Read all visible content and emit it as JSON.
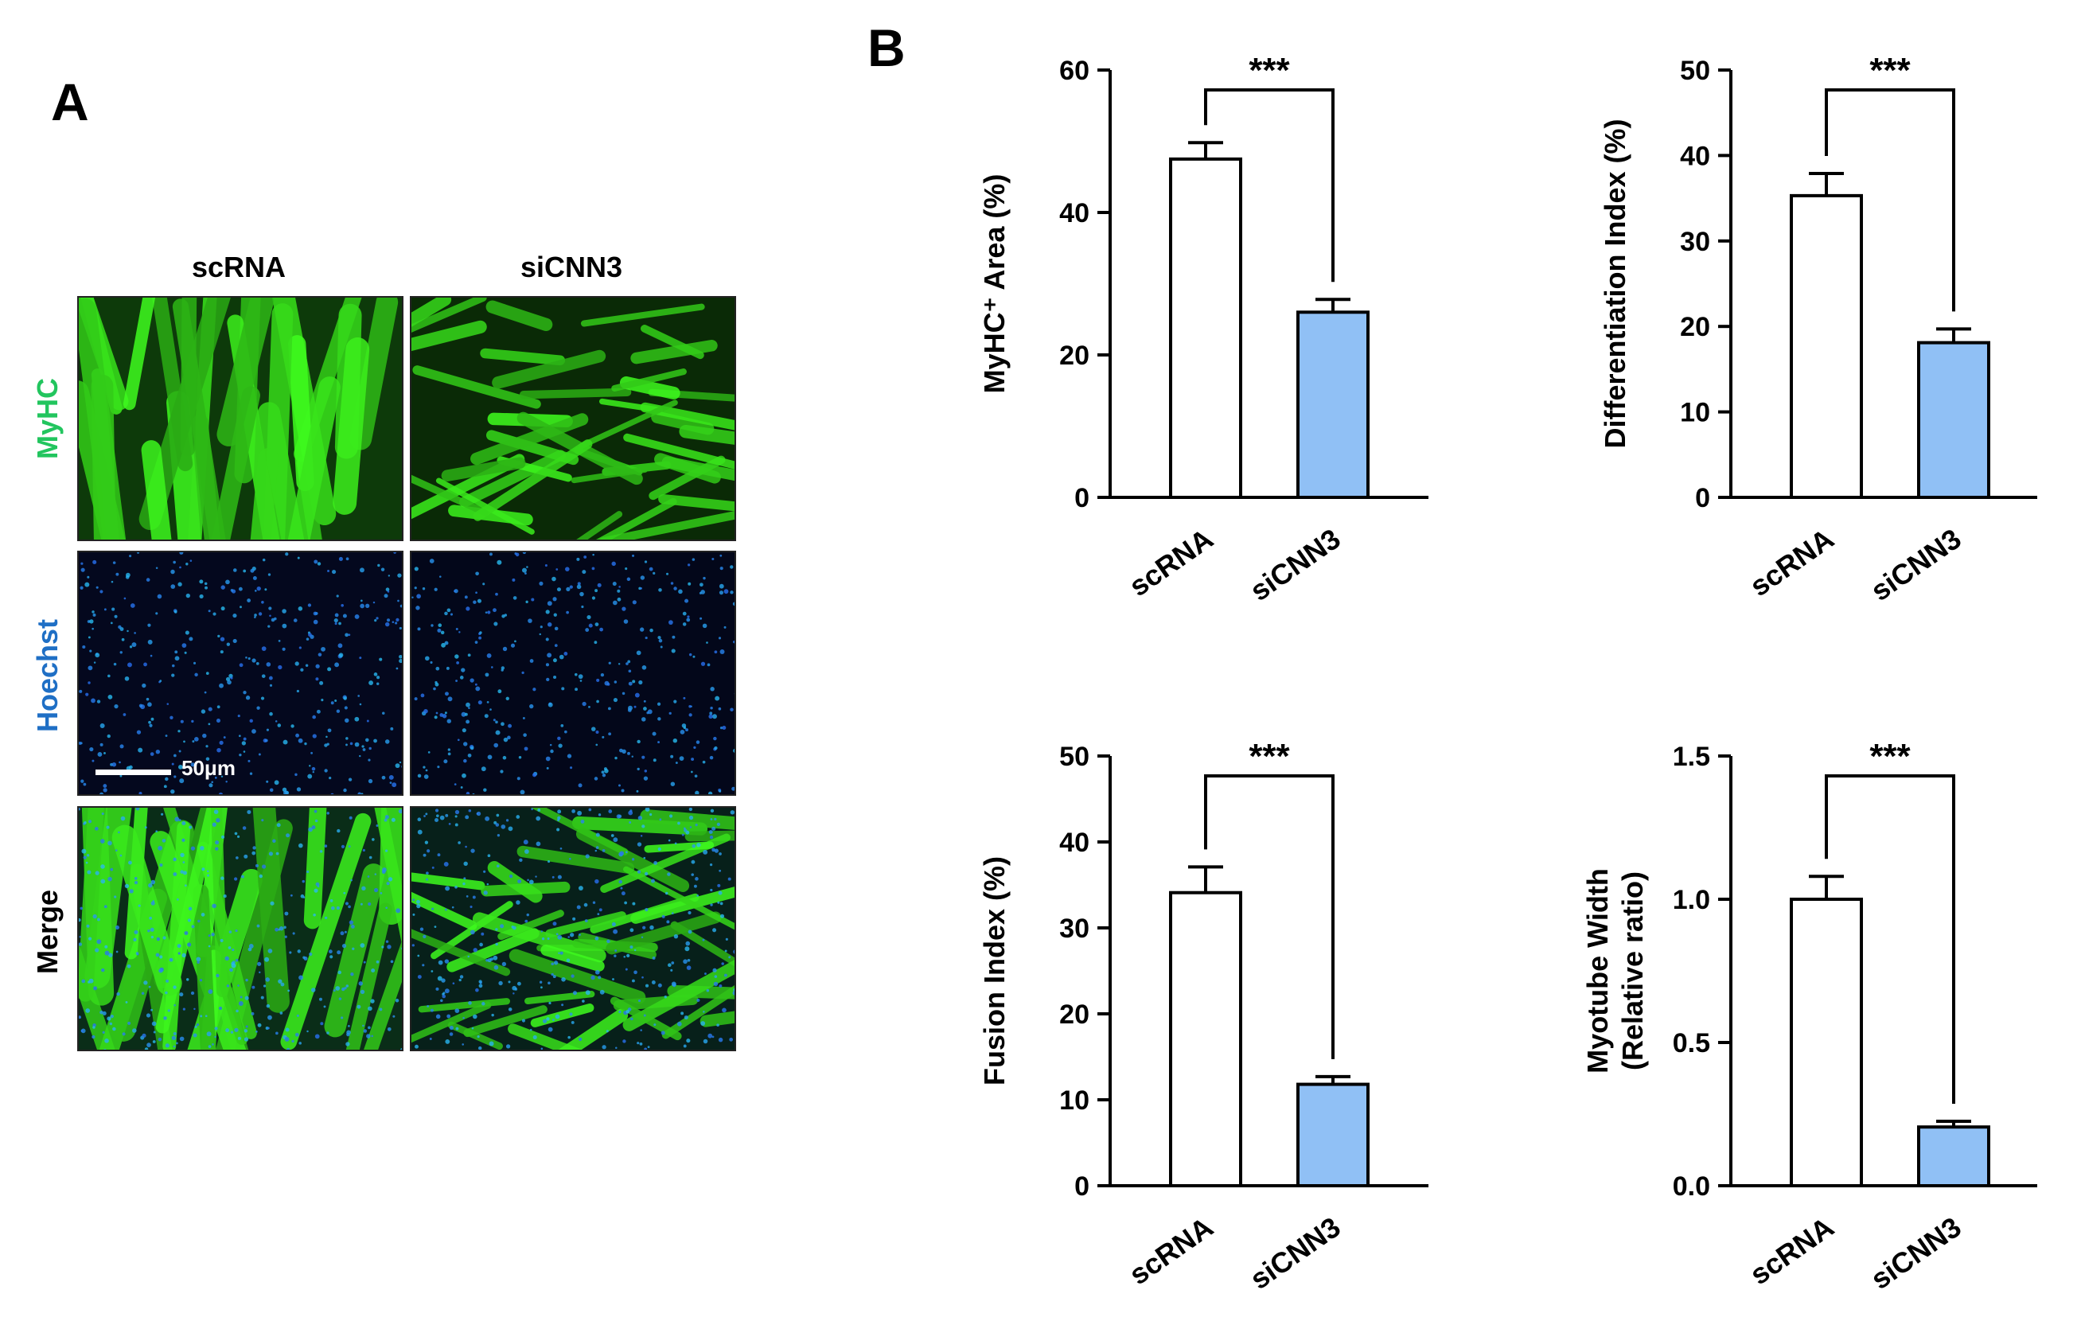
{
  "panel_a": {
    "letter": "A",
    "columns": [
      "scRNA",
      "siCNN3"
    ],
    "rows": [
      {
        "label": "MyHC",
        "color": "#22c55e"
      },
      {
        "label": "Hoechst",
        "color": "#1f6fc5"
      },
      {
        "label": "Merge",
        "color": "#000000"
      }
    ],
    "scale_bar": "50μm"
  },
  "panel_b": {
    "letter": "B"
  },
  "colors": {
    "bar_control": "#ffffff",
    "bar_treatment": "#90c0f5",
    "stroke": "#000000"
  },
  "chart_data": [
    {
      "type": "bar",
      "categories": [
        "scRNA",
        "siCNN3"
      ],
      "values": [
        47.5,
        26
      ],
      "errors": [
        2.3,
        1.8
      ],
      "ylabel": "MyHC⁺ Area (%)",
      "ylim": [
        0,
        60
      ],
      "yticks": [
        "0",
        "20",
        "40",
        "60"
      ],
      "significance": "***"
    },
    {
      "type": "bar",
      "categories": [
        "scRNA",
        "siCNN3"
      ],
      "values": [
        35.3,
        18.1
      ],
      "errors": [
        2.6,
        1.6
      ],
      "ylabel": "Differentiation Index (%)",
      "ylim": [
        0,
        50
      ],
      "yticks": [
        "0",
        "10",
        "20",
        "30",
        "40",
        "50"
      ],
      "significance": "***"
    },
    {
      "type": "bar",
      "categories": [
        "scRNA",
        "siCNN3"
      ],
      "values": [
        34.1,
        11.8
      ],
      "errors": [
        3.0,
        0.9
      ],
      "ylabel": "Fusion Index (%)",
      "ylim": [
        0,
        50
      ],
      "yticks": [
        "0",
        "10",
        "20",
        "30",
        "40",
        "50"
      ],
      "significance": "***"
    },
    {
      "type": "bar",
      "categories": [
        "scRNA",
        "siCNN3"
      ],
      "values": [
        1.0,
        0.205
      ],
      "errors": [
        0.08,
        0.02
      ],
      "ylabel": [
        "Myotube Width",
        "(Relative ratio)"
      ],
      "ylim": [
        0,
        1.5
      ],
      "yticks": [
        "0.0",
        "0.5",
        "1.0",
        "1.5"
      ],
      "significance": "***"
    }
  ]
}
